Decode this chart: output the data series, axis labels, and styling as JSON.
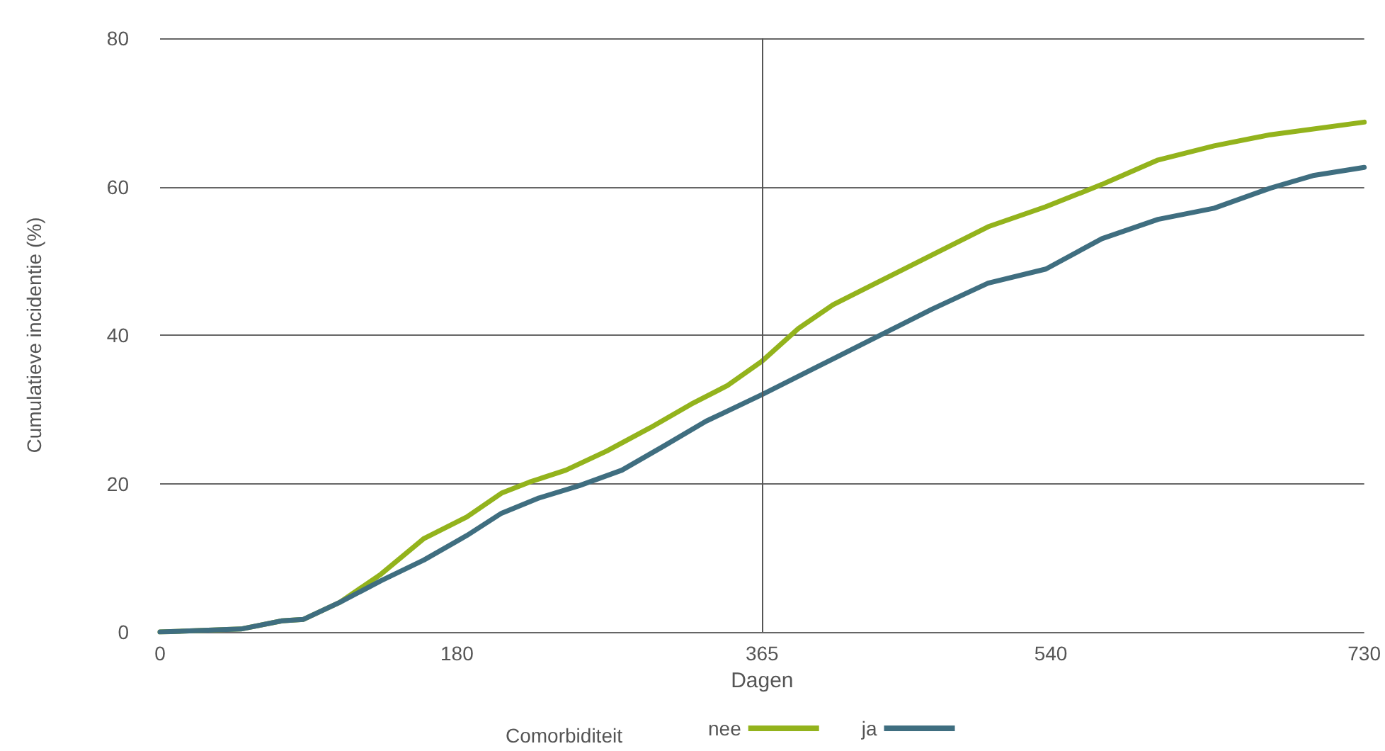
{
  "chart_data": {
    "type": "line",
    "xlabel": "Dagen",
    "ylabel": "Cumulatieve incidentie (%)",
    "legend_title": "Comorbiditeit",
    "legend": "bottom",
    "grid": "y",
    "marker": "none",
    "line_style": "solid",
    "xlim": [
      0,
      730
    ],
    "xticks": [
      0,
      180,
      365,
      540,
      730
    ],
    "ylim": [
      0,
      80
    ],
    "yticks": [
      0,
      20,
      40,
      60,
      80
    ],
    "ref_lines": [
      {
        "axis": "x",
        "value": 365,
        "color": "#555555"
      }
    ],
    "series": [
      {
        "name": "nee",
        "color": "#93b31c",
        "x": [
          0,
          49,
          74,
          87,
          109,
          134,
          160,
          186,
          207,
          224,
          246,
          271,
          297,
          322,
          344,
          365,
          387,
          408,
          434,
          468,
          502,
          537,
          571,
          605,
          639,
          673,
          730
        ],
        "values": [
          0,
          0.4,
          1.5,
          1.7,
          4,
          7.8,
          12.6,
          15.5,
          18.7,
          20.2,
          21.8,
          24.4,
          27.5,
          30.7,
          33.2,
          36.5,
          40.9,
          44.1,
          47,
          50.8,
          54.6,
          57.3,
          60.3,
          63.6,
          65.5,
          67,
          68.7
        ]
      },
      {
        "name": "ja",
        "color": "#3f6e80",
        "x": [
          0,
          49,
          74,
          87,
          109,
          134,
          160,
          186,
          207,
          229,
          254,
          280,
          305,
          331,
          365,
          400,
          434,
          468,
          502,
          537,
          571,
          605,
          639,
          673,
          699,
          730
        ],
        "values": [
          0,
          0.4,
          1.5,
          1.7,
          4,
          6.9,
          9.7,
          13,
          16,
          18,
          19.7,
          21.8,
          25,
          28.4,
          32,
          35.9,
          39.7,
          43.5,
          47,
          48.9,
          53,
          55.6,
          57.1,
          59.8,
          61.5,
          62.6
        ]
      }
    ]
  }
}
